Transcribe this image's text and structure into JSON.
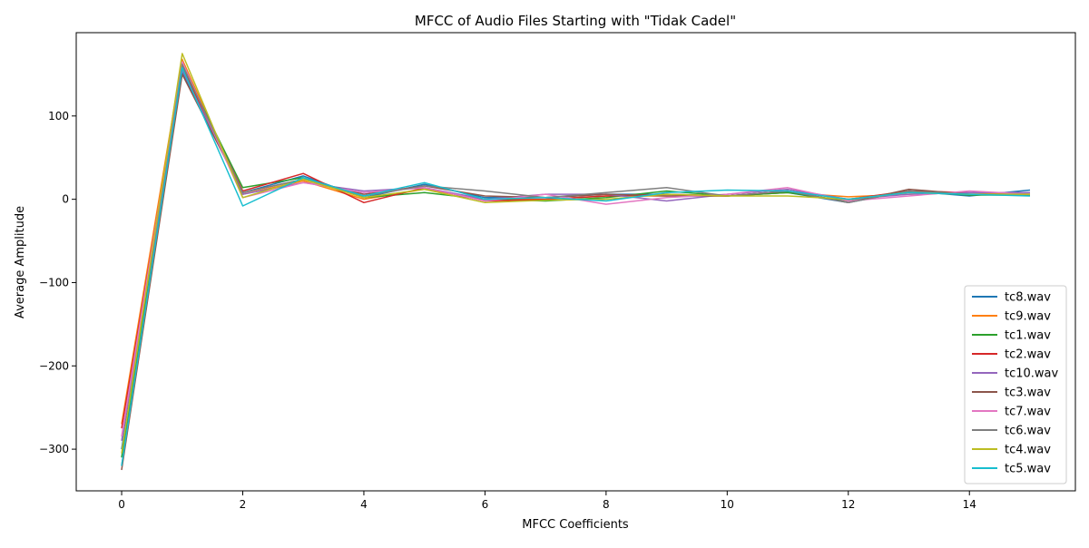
{
  "chart_data": {
    "type": "line",
    "title": "MFCC of Audio Files Starting with \"Tidak Cadel\"",
    "xlabel": "MFCC Coefficients",
    "ylabel": "Average Amplitude",
    "xlim": [
      -0.75,
      15.75
    ],
    "ylim": [
      -350,
      200
    ],
    "xticks": [
      0,
      2,
      4,
      6,
      8,
      10,
      12,
      14
    ],
    "yticks": [
      -300,
      -200,
      -100,
      0,
      100
    ],
    "grid": false,
    "legend_position": "bottom-right",
    "x": [
      0,
      1,
      2,
      3,
      4,
      5,
      6,
      7,
      8,
      9,
      10,
      11,
      12,
      13,
      14,
      15
    ],
    "series": [
      {
        "name": "tc8.wav",
        "color": "#1f77b4",
        "values": [
          -300,
          152,
          8,
          28,
          2,
          18,
          2,
          2,
          6,
          6,
          4,
          8,
          -4,
          10,
          4,
          11
        ]
      },
      {
        "name": "tc9.wav",
        "color": "#ff7f0e",
        "values": [
          -270,
          168,
          6,
          22,
          0,
          12,
          0,
          0,
          4,
          4,
          4,
          8,
          3,
          6,
          8,
          6
        ]
      },
      {
        "name": "tc1.wav",
        "color": "#2ca02c",
        "values": [
          -310,
          160,
          14,
          26,
          2,
          8,
          0,
          -2,
          2,
          10,
          4,
          8,
          -2,
          10,
          5,
          5
        ]
      },
      {
        "name": "tc2.wav",
        "color": "#d62728",
        "values": [
          -275,
          158,
          10,
          31,
          -4,
          14,
          -2,
          0,
          4,
          6,
          4,
          10,
          0,
          10,
          8,
          8
        ]
      },
      {
        "name": "tc10.wav",
        "color": "#9467bd",
        "values": [
          -290,
          155,
          6,
          20,
          10,
          14,
          0,
          6,
          6,
          -2,
          6,
          12,
          0,
          6,
          8,
          8
        ]
      },
      {
        "name": "tc3.wav",
        "color": "#8c564b",
        "values": [
          -325,
          150,
          8,
          24,
          6,
          16,
          4,
          2,
          6,
          4,
          4,
          10,
          -4,
          12,
          6,
          6
        ]
      },
      {
        "name": "tc7.wav",
        "color": "#e377c2",
        "values": [
          -285,
          165,
          2,
          20,
          8,
          14,
          -2,
          6,
          -6,
          2,
          6,
          14,
          -2,
          4,
          10,
          6
        ]
      },
      {
        "name": "tc6.wav",
        "color": "#7f7f7f",
        "values": [
          -320,
          162,
          8,
          24,
          4,
          16,
          10,
          2,
          8,
          14,
          4,
          10,
          -4,
          10,
          6,
          6
        ]
      },
      {
        "name": "tc4.wav",
        "color": "#bcbd22",
        "values": [
          -305,
          175,
          2,
          24,
          2,
          12,
          -4,
          -1,
          0,
          6,
          4,
          4,
          0,
          8,
          6,
          6
        ]
      },
      {
        "name": "tc5.wav",
        "color": "#17becf",
        "values": [
          -320,
          158,
          -8,
          26,
          4,
          20,
          0,
          2,
          -2,
          8,
          11,
          10,
          0,
          8,
          6,
          4
        ]
      }
    ]
  }
}
